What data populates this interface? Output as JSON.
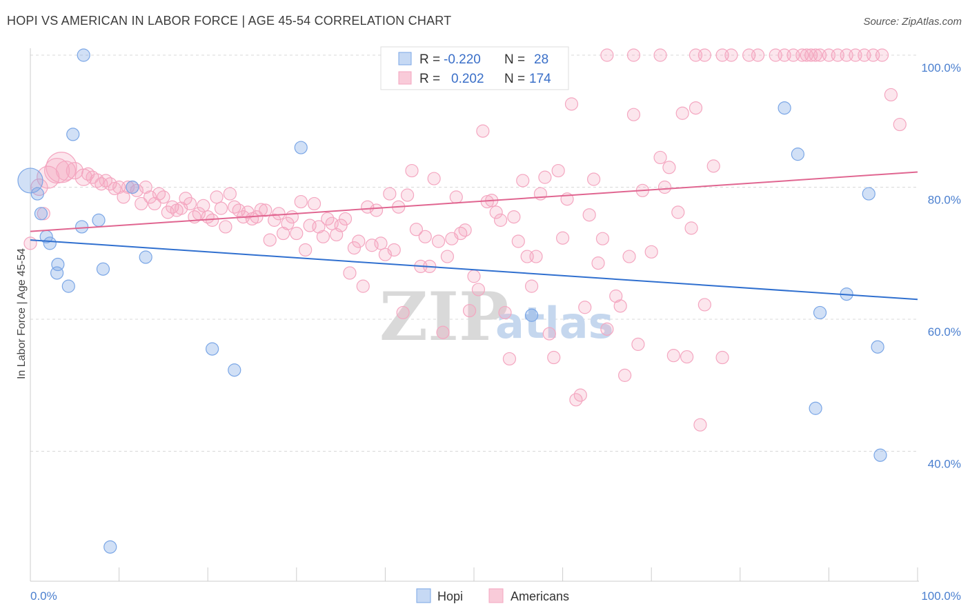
{
  "title": "HOPI VS AMERICAN IN LABOR FORCE | AGE 45-54 CORRELATION CHART",
  "source": "Source: ZipAtlas.com",
  "watermark": {
    "zip": "ZIP",
    "atlas": "atlas"
  },
  "legend": {
    "rows": [
      {
        "r_label": "R =",
        "r_value": "-0.220",
        "n_label": "N =",
        "n_value": "28"
      },
      {
        "r_label": "R =",
        "r_value": "0.202",
        "n_label": "N =",
        "n_value": "174"
      }
    ]
  },
  "colors": {
    "hopi": "#7aa6e6",
    "hopi_line": "#2f6fcf",
    "americans": "#f4a6c0",
    "americans_line": "#e06590",
    "grid": "#d8d8d8",
    "tick_text": "#4a7fcf"
  },
  "chart_data": {
    "type": "scatter",
    "title": "HOPI VS AMERICAN IN LABOR FORCE | AGE 45-54 CORRELATION CHART",
    "xlabel": "",
    "ylabel": "In Labor Force | Age 45-54",
    "xlim": [
      0,
      100
    ],
    "ylim": [
      20,
      101
    ],
    "x_tick_labels": [
      "0.0%",
      "100.0%"
    ],
    "y_tick_labels": [
      "100.0%",
      "80.0%",
      "60.0%",
      "40.0%"
    ],
    "y_ticks": [
      100,
      80,
      60,
      40
    ],
    "grid": true,
    "legend_position": "top-center",
    "series": [
      {
        "name": "Hopi",
        "r": -0.22,
        "n": 28,
        "trend": {
          "x": [
            0,
            100
          ],
          "y": [
            72.0,
            63.0
          ]
        },
        "points": [
          [
            0,
            81,
            18
          ],
          [
            0.8,
            79,
            9
          ],
          [
            1.2,
            76,
            9
          ],
          [
            1.8,
            72.5,
            9
          ],
          [
            2.2,
            71.5,
            9
          ],
          [
            3.0,
            67,
            9
          ],
          [
            3.1,
            68.3,
            9
          ],
          [
            4.3,
            65,
            9
          ],
          [
            4.8,
            88,
            9
          ],
          [
            5.8,
            74,
            9
          ],
          [
            6.0,
            100,
            9
          ],
          [
            7.7,
            75,
            9
          ],
          [
            8.2,
            67.6,
            9
          ],
          [
            11.5,
            80,
            9
          ],
          [
            13,
            69.4,
            9
          ],
          [
            20.5,
            55.5,
            9
          ],
          [
            23,
            52.3,
            9
          ],
          [
            9.0,
            25.5,
            9
          ],
          [
            30.5,
            86,
            9
          ],
          [
            56.5,
            60.6,
            9
          ],
          [
            85,
            92,
            9
          ],
          [
            86.5,
            85,
            9
          ],
          [
            88.5,
            46.5,
            9
          ],
          [
            89,
            61,
            9
          ],
          [
            92,
            63.8,
            9
          ],
          [
            94.5,
            79,
            9
          ],
          [
            95.5,
            55.8,
            9
          ],
          [
            95.8,
            39.4,
            9
          ]
        ]
      },
      {
        "name": "Americans",
        "r": 0.202,
        "n": 174,
        "trend": {
          "x": [
            0,
            100
          ],
          "y": [
            73.3,
            82.3
          ]
        },
        "points": [
          [
            0,
            71.5,
            9
          ],
          [
            1,
            80,
            12
          ],
          [
            1.5,
            76,
            9
          ],
          [
            2,
            81.5,
            16
          ],
          [
            3,
            82.5,
            18
          ],
          [
            3.5,
            83,
            22
          ],
          [
            4,
            82.5,
            14
          ],
          [
            5,
            82.5,
            12
          ],
          [
            6,
            81.5,
            12
          ],
          [
            6.5,
            82,
            9
          ],
          [
            7,
            81.5,
            9
          ],
          [
            7.5,
            81,
            10
          ],
          [
            8,
            80.5,
            9
          ],
          [
            8.5,
            81,
            9
          ],
          [
            9,
            80.5,
            9
          ],
          [
            9.5,
            79.8,
            9
          ],
          [
            10,
            80,
            9
          ],
          [
            10.5,
            78.5,
            9
          ],
          [
            11,
            80,
            9
          ],
          [
            11.5,
            80,
            9
          ],
          [
            12,
            79.5,
            9
          ],
          [
            12.5,
            77.5,
            9
          ],
          [
            13,
            80,
            9
          ],
          [
            13.5,
            78.5,
            9
          ],
          [
            14,
            77.5,
            9
          ],
          [
            14.5,
            79,
            9
          ],
          [
            15,
            78.5,
            9
          ],
          [
            15.5,
            76.2,
            9
          ],
          [
            16,
            77,
            9
          ],
          [
            16.5,
            76.5,
            9
          ],
          [
            17,
            76.8,
            9
          ],
          [
            17.5,
            78.3,
            9
          ],
          [
            18,
            77.5,
            9
          ],
          [
            18.5,
            75.5,
            9
          ],
          [
            19,
            76,
            9
          ],
          [
            19.5,
            77.2,
            9
          ],
          [
            20,
            75.5,
            9
          ],
          [
            20.5,
            75,
            9
          ],
          [
            21,
            78.5,
            9
          ],
          [
            21.5,
            76.8,
            9
          ],
          [
            22,
            74,
            9
          ],
          [
            22.5,
            79,
            9
          ],
          [
            23,
            77,
            9
          ],
          [
            23.5,
            76.5,
            9
          ],
          [
            24,
            75.5,
            9
          ],
          [
            24.5,
            76.2,
            9
          ],
          [
            25,
            75.2,
            9
          ],
          [
            25.5,
            75.5,
            9
          ],
          [
            26,
            76.6,
            9
          ],
          [
            26.5,
            76.5,
            9
          ],
          [
            27,
            72,
            9
          ],
          [
            27.5,
            75,
            9
          ],
          [
            28,
            76,
            9
          ],
          [
            28.5,
            73,
            9
          ],
          [
            29,
            74.5,
            9
          ],
          [
            29.5,
            75.5,
            9
          ],
          [
            30,
            73,
            9
          ],
          [
            30.5,
            77.8,
            9
          ],
          [
            31,
            70.5,
            9
          ],
          [
            31.5,
            74.2,
            9
          ],
          [
            32,
            77.5,
            9
          ],
          [
            32.5,
            74,
            9
          ],
          [
            33,
            72.5,
            9
          ],
          [
            33.5,
            75.2,
            9
          ],
          [
            34,
            74.5,
            9
          ],
          [
            34.5,
            72.8,
            9
          ],
          [
            35,
            74.2,
            9
          ],
          [
            35.5,
            75.2,
            9
          ],
          [
            36,
            67,
            9
          ],
          [
            36.5,
            70.8,
            9
          ],
          [
            37,
            71.8,
            9
          ],
          [
            37.5,
            65,
            9
          ],
          [
            38,
            77,
            9
          ],
          [
            38.5,
            71.2,
            9
          ],
          [
            39,
            76.5,
            9
          ],
          [
            39.5,
            71.5,
            9
          ],
          [
            40,
            69.8,
            9
          ],
          [
            40.5,
            79,
            9
          ],
          [
            41,
            70.5,
            9
          ],
          [
            41.5,
            77,
            9
          ],
          [
            42,
            61,
            9
          ],
          [
            42.5,
            78.8,
            9
          ],
          [
            43,
            82.5,
            9
          ],
          [
            43.5,
            73.6,
            9
          ],
          [
            44,
            68,
            9
          ],
          [
            44.5,
            72.5,
            9
          ],
          [
            45,
            68,
            9
          ],
          [
            45.5,
            81.3,
            9
          ],
          [
            46,
            71.8,
            9
          ],
          [
            46.5,
            58,
            9
          ],
          [
            47,
            69.5,
            9
          ],
          [
            47.5,
            72.2,
            9
          ],
          [
            48,
            78.5,
            9
          ],
          [
            48.5,
            73,
            9
          ],
          [
            49,
            73.5,
            9
          ],
          [
            49.5,
            61.3,
            9
          ],
          [
            50,
            66.5,
            9
          ],
          [
            50.5,
            64.5,
            9
          ],
          [
            51,
            88.5,
            9
          ],
          [
            51.5,
            77.8,
            9
          ],
          [
            52,
            78,
            9
          ],
          [
            52.5,
            76.2,
            9
          ],
          [
            53,
            75,
            9
          ],
          [
            53.5,
            61,
            9
          ],
          [
            54,
            54,
            9
          ],
          [
            54.5,
            75.5,
            9
          ],
          [
            55,
            71.8,
            9
          ],
          [
            55.5,
            81,
            9
          ],
          [
            56,
            69.5,
            9
          ],
          [
            56.5,
            65,
            9
          ],
          [
            57,
            69.5,
            9
          ],
          [
            57.5,
            79,
            9
          ],
          [
            58,
            81.5,
            9
          ],
          [
            58.5,
            57.8,
            9
          ],
          [
            59,
            54.2,
            9
          ],
          [
            59.5,
            82.5,
            9
          ],
          [
            60,
            72.3,
            9
          ],
          [
            60.5,
            78.2,
            9
          ],
          [
            61,
            92.6,
            9
          ],
          [
            61.5,
            47.8,
            9
          ],
          [
            62,
            48.5,
            9
          ],
          [
            62.5,
            61.8,
            9
          ],
          [
            63,
            75.8,
            9
          ],
          [
            63.5,
            81.2,
            9
          ],
          [
            64,
            68.5,
            9
          ],
          [
            64.5,
            72.2,
            9
          ],
          [
            65,
            58.5,
            9
          ],
          [
            66,
            63.5,
            9
          ],
          [
            66.5,
            62,
            9
          ],
          [
            67,
            51.5,
            9
          ],
          [
            67.5,
            69.5,
            9
          ],
          [
            68,
            91,
            9
          ],
          [
            68.5,
            56.2,
            9
          ],
          [
            69,
            79.5,
            9
          ],
          [
            70,
            70.2,
            9
          ],
          [
            71,
            84.5,
            9
          ],
          [
            71.5,
            80,
            9
          ],
          [
            72,
            83,
            9
          ],
          [
            72.5,
            54.5,
            9
          ],
          [
            73,
            76.2,
            9
          ],
          [
            73.5,
            91.2,
            9
          ],
          [
            74,
            54.3,
            9
          ],
          [
            74.5,
            73.8,
            9
          ],
          [
            75,
            92,
            9
          ],
          [
            75.5,
            44,
            9
          ],
          [
            76,
            62.2,
            9
          ],
          [
            77,
            83.2,
            9
          ],
          [
            78,
            54.2,
            9
          ],
          [
            65,
            100,
            9
          ],
          [
            68,
            100,
            9
          ],
          [
            71,
            100,
            9
          ],
          [
            75,
            100,
            9
          ],
          [
            76,
            100,
            9
          ],
          [
            78,
            100,
            9
          ],
          [
            79,
            100,
            9
          ],
          [
            81,
            100,
            9
          ],
          [
            82,
            100,
            9
          ],
          [
            84,
            100,
            9
          ],
          [
            85,
            100,
            9
          ],
          [
            86,
            100,
            9
          ],
          [
            87,
            100,
            9
          ],
          [
            87.5,
            100,
            9
          ],
          [
            88,
            100,
            9
          ],
          [
            88.5,
            100,
            9
          ],
          [
            89,
            100,
            9
          ],
          [
            90,
            100,
            9
          ],
          [
            91,
            100,
            9
          ],
          [
            92,
            100,
            9
          ],
          [
            93,
            100,
            9
          ],
          [
            94,
            100,
            9
          ],
          [
            95,
            100,
            9
          ],
          [
            96,
            100,
            9
          ],
          [
            97,
            94,
            9
          ],
          [
            98,
            89.5,
            9
          ]
        ]
      }
    ]
  },
  "bottom_legend": [
    {
      "name": "Hopi"
    },
    {
      "name": "Americans"
    }
  ]
}
